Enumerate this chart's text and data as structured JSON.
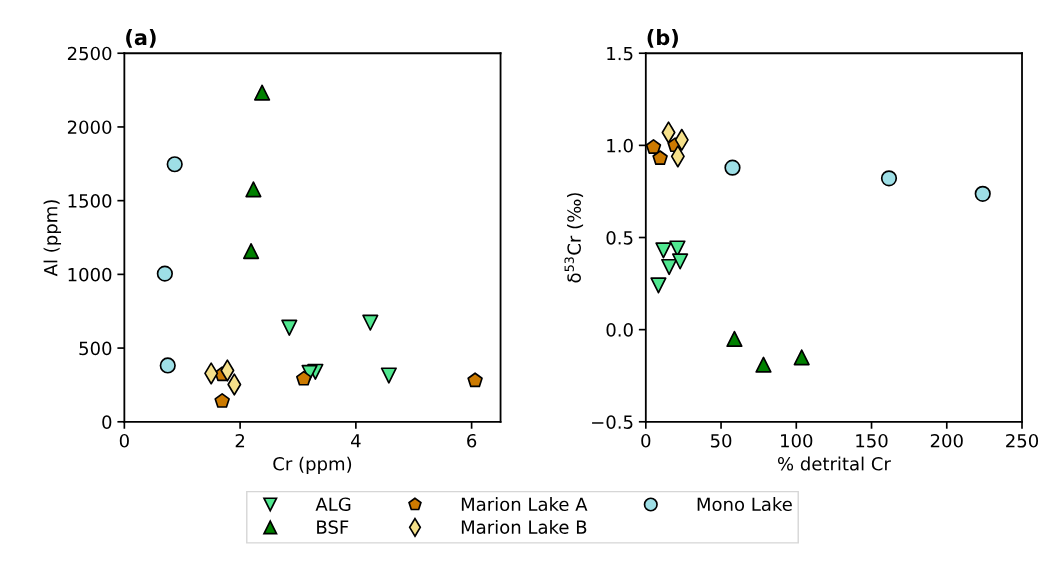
{
  "chart_data": [
    {
      "type": "scatter",
      "title": "(a)",
      "xlabel": "Cr (ppm)",
      "ylabel": "Al (ppm)",
      "xlim": [
        0,
        6.5
      ],
      "xticks": [
        0,
        2,
        4,
        6
      ],
      "ylim": [
        0,
        2500
      ],
      "yticks": [
        0,
        500,
        1000,
        1500,
        2000,
        2500
      ],
      "grid": false,
      "legend": "bottom",
      "series": [
        {
          "name": "ALG",
          "color": "#50e890",
          "marker": "triangle_down",
          "x": [
            2.85,
            4.25,
            4.57,
            3.3,
            3.2
          ],
          "values": [
            638,
            672,
            314,
            339,
            332
          ]
        },
        {
          "name": "BSF",
          "color": "#008000",
          "marker": "triangle",
          "x": [
            2.38,
            2.23,
            2.19
          ],
          "values": [
            2233,
            1577,
            1158
          ]
        },
        {
          "name": "Marion Lake A",
          "color": "#cc7a00",
          "x": [
            1.69,
            1.69,
            3.1,
            6.06
          ],
          "values": [
            321,
            140,
            291,
            280
          ]
        },
        {
          "name": "Marion Lake B",
          "color": "#f5e08a",
          "marker": "diamond",
          "x": [
            1.5,
            1.78,
            1.9
          ],
          "values": [
            328,
            348,
            253
          ]
        },
        {
          "name": "Mono Lake",
          "color": "#9edfe6",
          "marker": "circle",
          "x": [
            0.87,
            0.7,
            0.75
          ],
          "values": [
            1747,
            1005,
            382
          ]
        }
      ]
    },
    {
      "type": "scatter",
      "title": "(b)",
      "xlabel": "% detrital Cr",
      "ylabel": "δ$^{53}$Cr (‰)",
      "xlim": [
        0,
        250
      ],
      "xticks": [
        0,
        50,
        100,
        150,
        200,
        250
      ],
      "ylim": [
        -0.5,
        1.5
      ],
      "yticks": [
        {
          "value": -0.5,
          "label": "−0.5"
        },
        {
          "value": 0,
          "label": "0.0"
        },
        {
          "value": 0.5,
          "label": "0.5"
        },
        {
          "value": 1.0,
          "label": "1.0"
        },
        {
          "value": 1.5,
          "label": "1.5"
        }
      ],
      "grid": false,
      "legend": "bottom",
      "series": [
        {
          "name": "ALG",
          "color": "#50e890",
          "marker": "triangle_down",
          "x": [
            11.7,
            21.0,
            15.5,
            22.8,
            8.4
          ],
          "values": [
            0.43,
            0.44,
            0.34,
            0.37,
            0.24
          ]
        },
        {
          "name": "BSF",
          "color": "#008000",
          "marker": "triangle",
          "x": [
            58.9,
            78.2,
            103.6
          ],
          "values": [
            -0.05,
            -0.19,
            -0.15
          ]
        },
        {
          "name": "Marion Lake A",
          "color": "#cc7a00",
          "x": [
            5.1,
            9.5,
            19.5
          ],
          "values": [
            0.99,
            0.93,
            1.0
          ]
        },
        {
          "name": "Marion Lake B",
          "color": "#f5e08a",
          "marker": "diamond",
          "x": [
            15.1,
            23.9,
            21.3
          ],
          "values": [
            1.07,
            1.03,
            0.94
          ]
        },
        {
          "name": "Mono Lake",
          "color": "#9edfe6",
          "marker": "circle",
          "x": [
            57.6,
            161.6,
            223.9
          ],
          "values": [
            0.879,
            0.821,
            0.737
          ]
        }
      ]
    }
  ]
}
